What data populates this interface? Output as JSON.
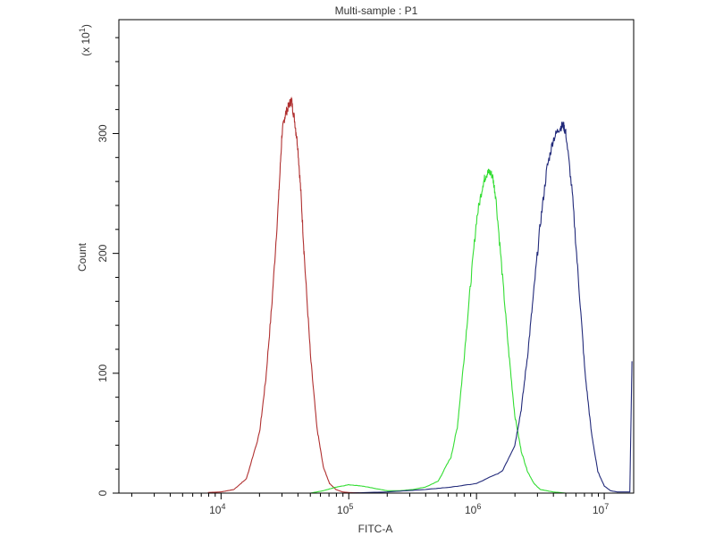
{
  "chart_data": {
    "type": "line",
    "title": "Multi-sample : P1",
    "xlabel": "FITC-A",
    "ylabel": "Count",
    "ylabel_multiplier": "(x 10",
    "ylabel_multiplier_exp": "1",
    "ylabel_multiplier_close": ")",
    "x_scale": "log",
    "xlim": [
      1585,
      17000000
    ],
    "ylim": [
      0,
      395
    ],
    "y_ticks": [
      0,
      100,
      200,
      300
    ],
    "y_tick_labels": [
      "0",
      "100",
      "200",
      "300"
    ],
    "x_ticks": [
      10000,
      100000,
      1000000,
      10000000
    ],
    "x_tick_bases": [
      "10",
      "10",
      "10",
      "10"
    ],
    "x_tick_exps": [
      "4",
      "5",
      "6",
      "7"
    ],
    "grid": false,
    "series": [
      {
        "color": "#b03030",
        "x": [
          7900,
          10000,
          12600,
          15800,
          20000,
          22400,
          25100,
          28200,
          30000,
          31600,
          33500,
          35500,
          37600,
          39800,
          42200,
          44700,
          50100,
          56200,
          63100,
          70800,
          79400,
          89100,
          100000,
          125900,
          158500,
          199500
        ],
        "y": [
          0.5,
          1,
          3,
          12,
          50,
          95,
          160,
          245,
          300,
          315,
          322,
          328,
          312,
          290,
          250,
          200,
          115,
          55,
          22,
          8,
          3,
          1,
          0.5,
          0.2,
          0,
          0
        ]
      },
      {
        "color": "#33dd33",
        "x": [
          50100,
          63100,
          79400,
          100000,
          125900,
          158500,
          199500,
          251200,
          316200,
          398100,
          501200,
          631000,
          707900,
          794300,
          891300,
          1000000,
          1122000,
          1189000,
          1259000,
          1333000,
          1413000,
          1585000,
          1778000,
          1995000,
          2239000,
          2512000,
          2818000,
          3162000,
          3981000,
          5012000
        ],
        "y": [
          0,
          2,
          5,
          7,
          6,
          4,
          2,
          2,
          3,
          5,
          10,
          30,
          55,
          110,
          170,
          228,
          258,
          266,
          268,
          265,
          248,
          185,
          120,
          65,
          35,
          18,
          8,
          3,
          1,
          0
        ]
      },
      {
        "color": "#222a7a",
        "x": [
          100000,
          199500,
          398100,
          631000,
          1000000,
          1585000,
          1995000,
          2239000,
          2512000,
          2818000,
          3162000,
          3548000,
          3981000,
          4467000,
          4786000,
          5012000,
          5623000,
          6310000,
          7080000,
          7943000,
          8913000,
          10000000,
          11220000,
          12590000,
          15850000,
          16500000
        ],
        "y": [
          0,
          1,
          3,
          5,
          8,
          18,
          40,
          70,
          115,
          170,
          225,
          270,
          295,
          305,
          307,
          300,
          250,
          175,
          100,
          50,
          18,
          6,
          2,
          1,
          1,
          110
        ]
      }
    ]
  }
}
